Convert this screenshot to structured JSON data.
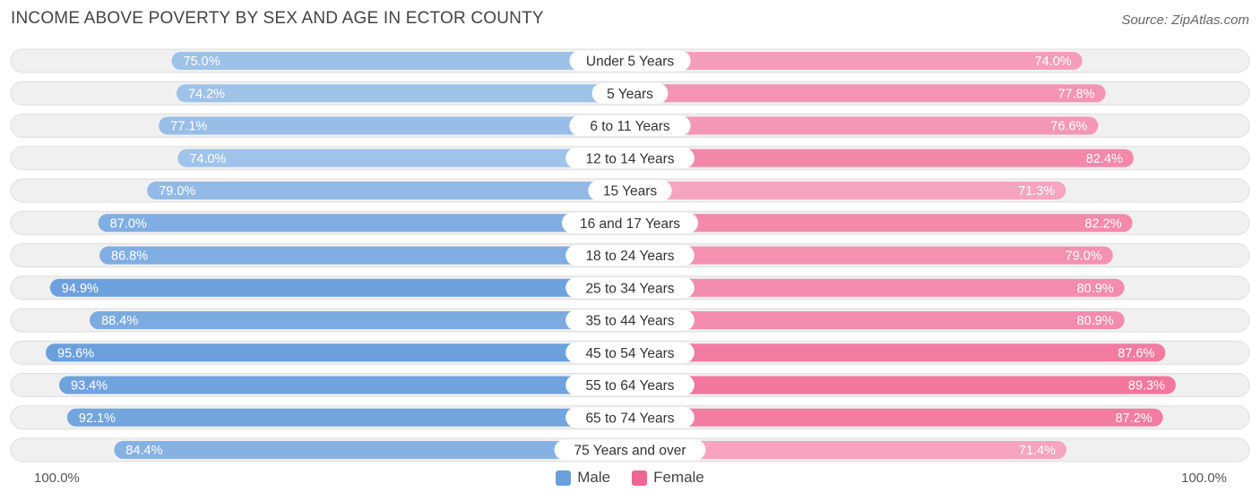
{
  "title": "INCOME ABOVE POVERTY BY SEX AND AGE IN ECTOR COUNTY",
  "source": "Source: ZipAtlas.com",
  "axis": {
    "left_label": "100.0%",
    "right_label": "100.0%"
  },
  "legend": {
    "male_label": "Male",
    "female_label": "Female"
  },
  "colors": {
    "male_light": "#a9c9ec",
    "male_dark": "#6a9fdc",
    "female_light": "#f6a8c2",
    "female_dark": "#f06592",
    "row_bg": "#f0f0f0",
    "row_border": "#dedede"
  },
  "chart_data": {
    "type": "bar",
    "orientation": "horizontal-diverging",
    "title": "INCOME ABOVE POVERTY BY SEX AND AGE IN ECTOR COUNTY",
    "categories": [
      "Under 5 Years",
      "5 Years",
      "6 to 11 Years",
      "12 to 14 Years",
      "15 Years",
      "16 and 17 Years",
      "18 to 24 Years",
      "25 to 34 Years",
      "35 to 44 Years",
      "45 to 54 Years",
      "55 to 64 Years",
      "65 to 74 Years",
      "75 Years and over"
    ],
    "series": [
      {
        "name": "Male",
        "values": [
          75.0,
          74.2,
          77.1,
          74.0,
          79.0,
          87.0,
          86.8,
          94.9,
          88.4,
          95.6,
          93.4,
          92.1,
          84.4
        ],
        "labels": [
          "75.0%",
          "74.2%",
          "77.1%",
          "74.0%",
          "79.0%",
          "87.0%",
          "86.8%",
          "94.9%",
          "88.4%",
          "95.6%",
          "93.4%",
          "92.1%",
          "84.4%"
        ]
      },
      {
        "name": "Female",
        "values": [
          74.0,
          77.8,
          76.6,
          82.4,
          71.3,
          82.2,
          79.0,
          80.9,
          80.9,
          87.6,
          89.3,
          87.2,
          71.4
        ],
        "labels": [
          "74.0%",
          "77.8%",
          "76.6%",
          "82.4%",
          "71.3%",
          "82.2%",
          "79.0%",
          "80.9%",
          "80.9%",
          "87.6%",
          "89.3%",
          "87.2%",
          "71.4%"
        ]
      }
    ],
    "xlim": [
      0,
      100
    ],
    "legend_position": "bottom-center"
  }
}
